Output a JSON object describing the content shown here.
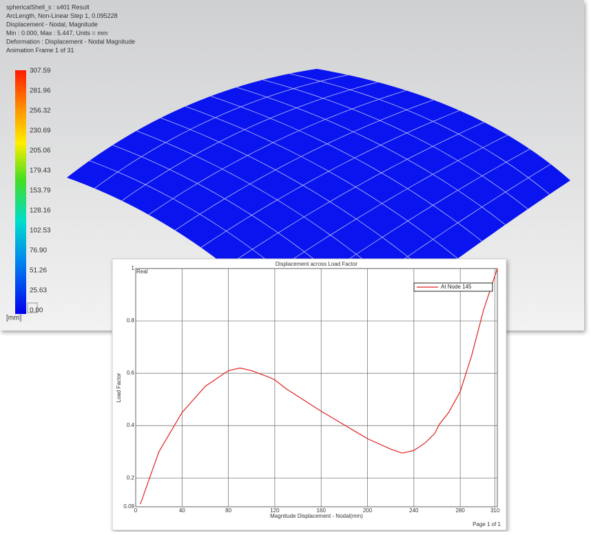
{
  "viewer": {
    "info_lines": [
      "sphericalShell_s : s401 Result",
      "ArcLength, Non-Linear Step 1, 0.095228",
      "Displacement - Nodal, Magnitude",
      "Min : 0.000, Max : 5.447, Units = mm",
      "Deformation : Displacement - Nodal Magnitude",
      "Animation Frame 1 of 31"
    ],
    "legend_labels": [
      "307.59",
      "281.96",
      "256.32",
      "230.69",
      "205.06",
      "179.43",
      "153.79",
      "128.16",
      "102.53",
      "76.90",
      "51.26",
      "25.63",
      "0.00"
    ],
    "legend_unit": "[mm]"
  },
  "chart_data": {
    "type": "line",
    "title": "Displacement across Load Factor",
    "x_label": "Magnitude Displacement - Nodal(mm)",
    "y_label": "Load Factor",
    "annotation": "Real",
    "footer": "Page 1 of 1",
    "x": [
      4,
      20,
      40,
      60,
      80,
      90,
      100,
      115,
      120,
      130,
      160,
      200,
      220,
      230,
      240,
      250,
      258,
      262,
      270,
      280,
      290,
      300,
      312
    ],
    "series": [
      {
        "name": "At Node 145",
        "color": "#e02020",
        "values": [
          0.1,
          0.3,
          0.45,
          0.55,
          0.61,
          0.62,
          0.61,
          0.585,
          0.575,
          0.54,
          0.455,
          0.35,
          0.31,
          0.295,
          0.305,
          0.335,
          0.37,
          0.405,
          0.45,
          0.53,
          0.67,
          0.84,
          1.0
        ]
      }
    ],
    "xlim": [
      0,
      312
    ],
    "ylim": [
      0.09,
      1
    ],
    "xticks": [
      0,
      40,
      80,
      120,
      160,
      200,
      240,
      280,
      310
    ],
    "yticks": [
      0.09,
      0.2,
      0.4,
      0.6,
      0.8,
      1
    ],
    "grid": true
  }
}
